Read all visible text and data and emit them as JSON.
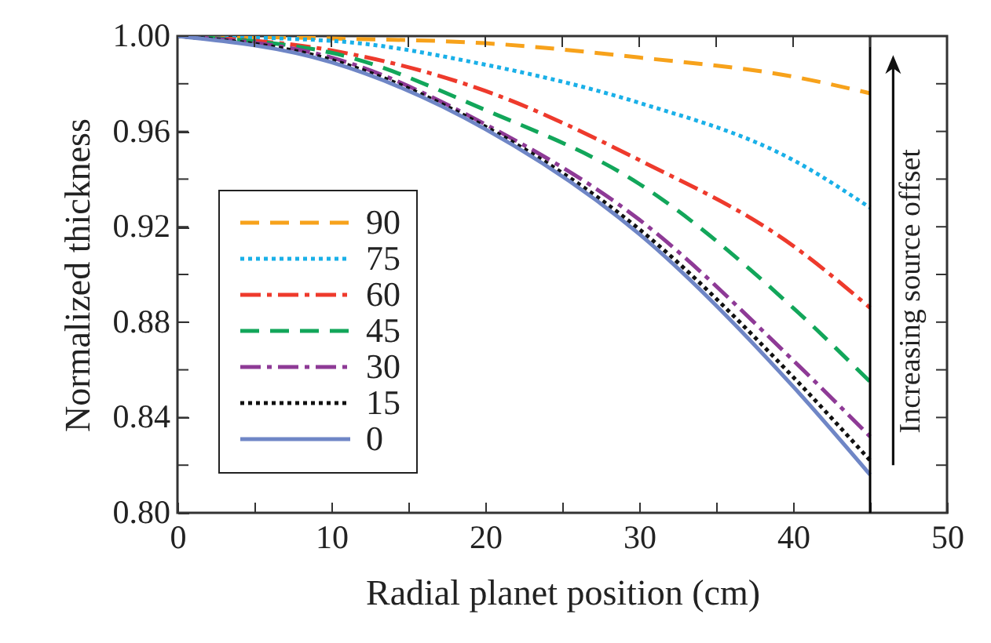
{
  "chart_data": {
    "type": "line",
    "xlabel": "Radial planet position (cm)",
    "ylabel": "Normalized thickness",
    "x": [
      0,
      10,
      20,
      30,
      40,
      45
    ],
    "series": [
      {
        "name": "90",
        "color": "#f7a21b",
        "line_style": "dashed",
        "values": [
          1.0,
          0.999,
          0.997,
          0.991,
          0.983,
          0.976
        ]
      },
      {
        "name": "75",
        "color": "#1ab0e8",
        "line_style": "dotted",
        "values": [
          1.0,
          0.998,
          0.988,
          0.972,
          0.948,
          0.928
        ]
      },
      {
        "name": "60",
        "color": "#ee3a2c",
        "line_style": "dashdot",
        "values": [
          1.0,
          0.994,
          0.977,
          0.948,
          0.912,
          0.886
        ]
      },
      {
        "name": "45",
        "color": "#12a65a",
        "line_style": "dashed",
        "values": [
          1.0,
          0.993,
          0.969,
          0.938,
          0.886,
          0.855
        ]
      },
      {
        "name": "30",
        "color": "#8e3a96",
        "line_style": "dashdot",
        "values": [
          1.0,
          0.991,
          0.963,
          0.923,
          0.864,
          0.832
        ]
      },
      {
        "name": "15",
        "color": "#111111",
        "line_style": "dotted",
        "values": [
          1.0,
          0.99,
          0.962,
          0.919,
          0.857,
          0.822
        ]
      },
      {
        "name": "0",
        "color": "#6f86c6",
        "line_style": "solid",
        "values": [
          1.0,
          0.989,
          0.961,
          0.917,
          0.853,
          0.816
        ]
      }
    ],
    "xlim": [
      0,
      50
    ],
    "xticks": [
      0,
      {
        "value": 5,
        "label": null
      },
      10,
      {
        "value": 15,
        "label": null
      },
      20,
      {
        "value": 25,
        "label": null
      },
      30,
      {
        "value": 35,
        "label": null
      },
      40,
      {
        "value": 45,
        "label": null
      },
      50
    ],
    "ylim": [
      0.8,
      1.0
    ],
    "yticks": [
      {
        "value": 0.8,
        "label": "0.80"
      },
      {
        "value": 0.82,
        "label": null
      },
      {
        "value": 0.84,
        "label": "0.84"
      },
      {
        "value": 0.86,
        "label": null
      },
      {
        "value": 0.88,
        "label": "0.88"
      },
      {
        "value": 0.9,
        "label": null
      },
      {
        "value": 0.92,
        "label": "0.92"
      },
      {
        "value": 0.94,
        "label": null
      },
      {
        "value": 0.96,
        "label": "0.96"
      },
      {
        "value": 0.98,
        "label": null
      },
      {
        "value": 1.0,
        "label": "1.00"
      }
    ],
    "ref_lines": [
      {
        "axis": "x",
        "value": 45,
        "label": null,
        "color": "#000000"
      }
    ],
    "annotations": [
      "Increasing source offset"
    ],
    "legend": "bottom left",
    "grid": false
  }
}
